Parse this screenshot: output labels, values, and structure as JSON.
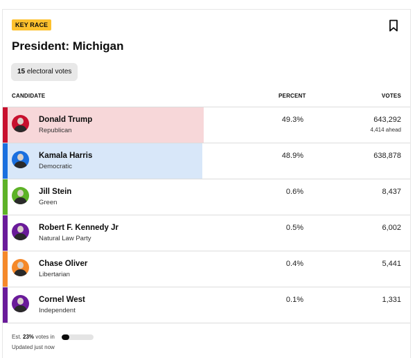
{
  "badge": "KEY RACE",
  "title": "President: Michigan",
  "electoral": {
    "count": "15",
    "label": "electoral votes"
  },
  "columns": {
    "candidate": "CANDIDATE",
    "percent": "PERCENT",
    "votes": "VOTES"
  },
  "colors": {
    "republican": "#c8102e",
    "republican_fill": "#f7d7d9",
    "democratic": "#1a6fdf",
    "democratic_fill": "#d8e7f9",
    "green": "#5db227",
    "natural_law": "#6a1b9a",
    "libertarian": "#f5892a",
    "independent": "#6a1b9a",
    "badge": "#fdc12e"
  },
  "candidates": [
    {
      "name": "Donald Trump",
      "party": "Republican",
      "percent": "49.3%",
      "votes": "643,292",
      "ahead": "4,414 ahead",
      "fill_fraction": 0.493
    },
    {
      "name": "Kamala Harris",
      "party": "Democratic",
      "percent": "48.9%",
      "votes": "638,878",
      "ahead": "",
      "fill_fraction": 0.489
    },
    {
      "name": "Jill Stein",
      "party": "Green",
      "percent": "0.6%",
      "votes": "8,437",
      "ahead": "",
      "fill_fraction": 0
    },
    {
      "name": "Robert F. Kennedy Jr",
      "party": "Natural Law Party",
      "percent": "0.5%",
      "votes": "6,002",
      "ahead": "",
      "fill_fraction": 0
    },
    {
      "name": "Chase Oliver",
      "party": "Libertarian",
      "percent": "0.4%",
      "votes": "5,441",
      "ahead": "",
      "fill_fraction": 0
    },
    {
      "name": "Cornel West",
      "party": "Independent",
      "percent": "0.1%",
      "votes": "1,331",
      "ahead": "",
      "fill_fraction": 0
    }
  ],
  "footer": {
    "est_prefix": "Est.",
    "est_value": "23%",
    "est_suffix": "votes in",
    "progress_fraction": 0.23,
    "updated": "Updated just now"
  },
  "icons": {
    "bookmark": "bookmark-icon",
    "avatar": "candidate-avatar"
  }
}
